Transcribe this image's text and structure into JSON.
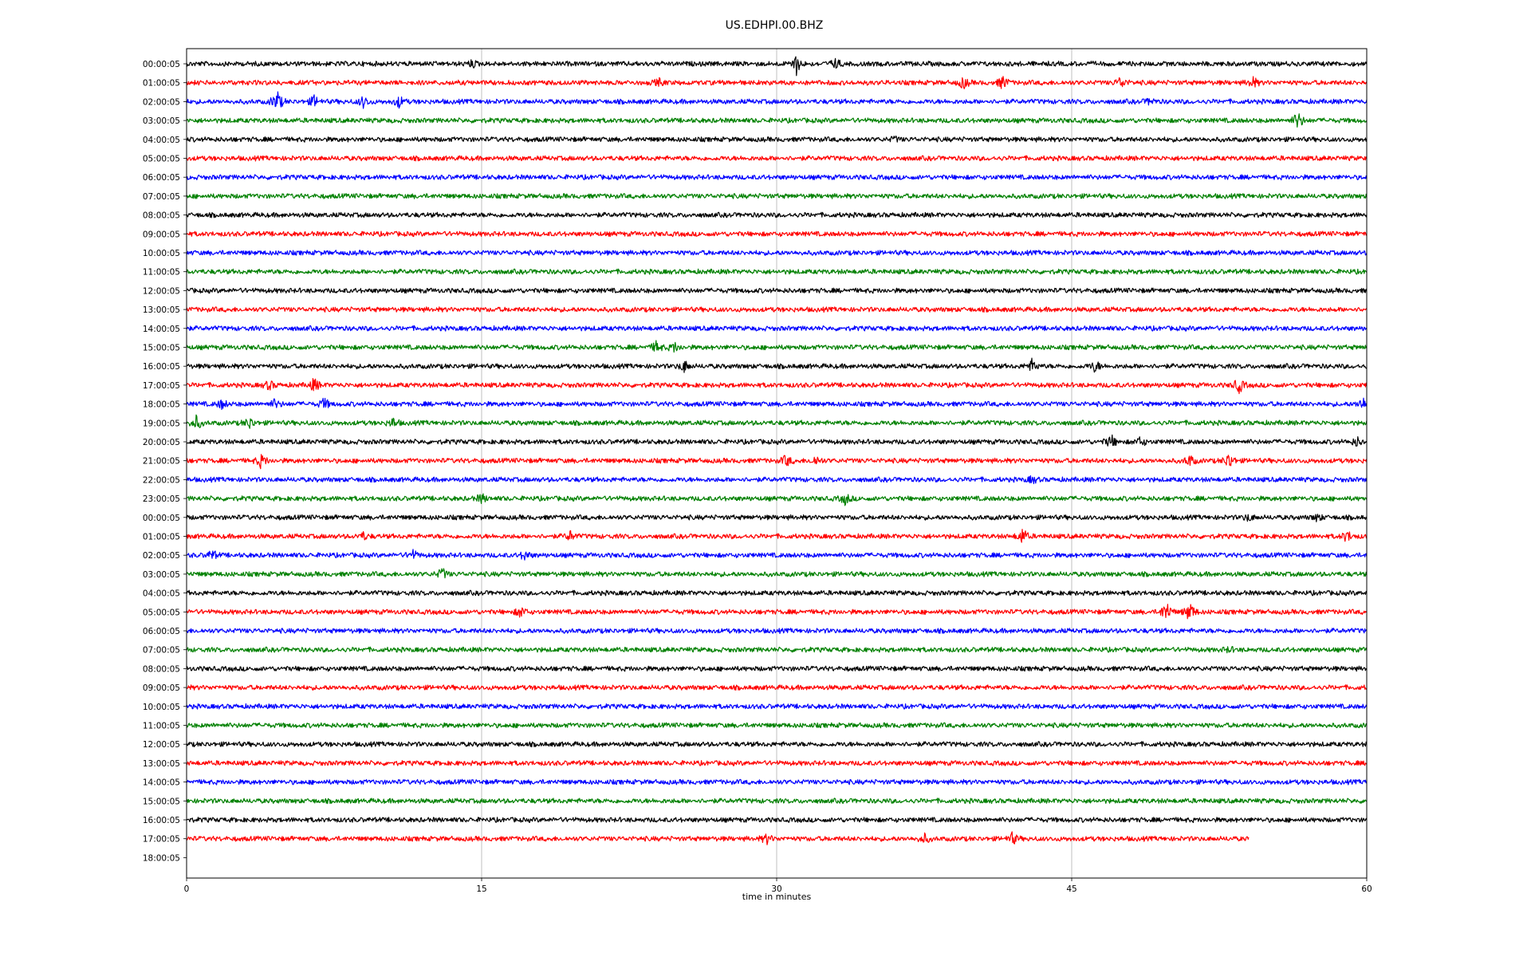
{
  "chart_data": {
    "type": "line",
    "title": "US.EDHPI.00.BHZ",
    "xlabel": "time in minutes",
    "ylabel": "",
    "xlim": [
      0,
      60
    ],
    "x_ticks": [
      0,
      15,
      30,
      45,
      60
    ],
    "grid": "vertical at x ticks",
    "trace_colors": [
      "#000000",
      "#ff0000",
      "#0000ff",
      "#008000"
    ],
    "row_labels": [
      "00:00:05",
      "01:00:05",
      "02:00:05",
      "03:00:05",
      "04:00:05",
      "05:00:05",
      "06:00:05",
      "07:00:05",
      "08:00:05",
      "09:00:05",
      "10:00:05",
      "11:00:05",
      "12:00:05",
      "13:00:05",
      "14:00:05",
      "15:00:05",
      "16:00:05",
      "17:00:05",
      "18:00:05",
      "19:00:05",
      "20:00:05",
      "21:00:05",
      "22:00:05",
      "23:00:05",
      "00:00:05",
      "01:00:05",
      "02:00:05",
      "03:00:05",
      "04:00:05",
      "05:00:05",
      "06:00:05",
      "07:00:05",
      "08:00:05",
      "09:00:05",
      "10:00:05",
      "11:00:05",
      "12:00:05",
      "13:00:05",
      "14:00:05",
      "15:00:05",
      "16:00:05",
      "17:00:05",
      "18:00:05"
    ],
    "trace_end_minutes": [
      60,
      60,
      60,
      60,
      60,
      60,
      60,
      60,
      60,
      60,
      60,
      60,
      60,
      60,
      60,
      60,
      60,
      60,
      60,
      60,
      60,
      60,
      60,
      60,
      60,
      60,
      60,
      60,
      60,
      60,
      60,
      60,
      60,
      60,
      60,
      60,
      60,
      60,
      60,
      60,
      60,
      54,
      0
    ],
    "events": [
      {
        "row": 0,
        "minute": 14.5,
        "amp": 0.3
      },
      {
        "row": 0,
        "minute": 31.0,
        "amp": 0.9
      },
      {
        "row": 0,
        "minute": 33.0,
        "amp": 0.4
      },
      {
        "row": 1,
        "minute": 24.0,
        "amp": 0.3
      },
      {
        "row": 1,
        "minute": 39.5,
        "amp": 0.5
      },
      {
        "row": 1,
        "minute": 41.5,
        "amp": 0.6
      },
      {
        "row": 1,
        "minute": 47.5,
        "amp": 0.5
      },
      {
        "row": 1,
        "minute": 54.2,
        "amp": 0.5
      },
      {
        "row": 2,
        "minute": 4.6,
        "amp": 1.0
      },
      {
        "row": 2,
        "minute": 6.5,
        "amp": 0.5
      },
      {
        "row": 2,
        "minute": 9.0,
        "amp": 0.5
      },
      {
        "row": 2,
        "minute": 10.8,
        "amp": 0.5
      },
      {
        "row": 2,
        "minute": 49.0,
        "amp": 0.3
      },
      {
        "row": 3,
        "minute": 56.5,
        "amp": 0.8
      },
      {
        "row": 4,
        "minute": 36.0,
        "amp": 0.2
      },
      {
        "row": 15,
        "minute": 23.9,
        "amp": 0.5
      },
      {
        "row": 15,
        "minute": 24.8,
        "amp": 0.4
      },
      {
        "row": 16,
        "minute": 25.3,
        "amp": 0.5
      },
      {
        "row": 16,
        "minute": 43.0,
        "amp": 0.6
      },
      {
        "row": 16,
        "minute": 46.2,
        "amp": 0.5
      },
      {
        "row": 17,
        "minute": 4.2,
        "amp": 0.4
      },
      {
        "row": 17,
        "minute": 6.5,
        "amp": 0.6
      },
      {
        "row": 17,
        "minute": 53.5,
        "amp": 0.7
      },
      {
        "row": 18,
        "minute": 1.8,
        "amp": 0.4
      },
      {
        "row": 18,
        "minute": 4.5,
        "amp": 0.4
      },
      {
        "row": 18,
        "minute": 7.0,
        "amp": 0.5
      },
      {
        "row": 18,
        "minute": 59.8,
        "amp": 0.6
      },
      {
        "row": 19,
        "minute": 0.5,
        "amp": 0.6
      },
      {
        "row": 19,
        "minute": 3.2,
        "amp": 0.5
      },
      {
        "row": 19,
        "minute": 10.5,
        "amp": 0.4
      },
      {
        "row": 20,
        "minute": 47.0,
        "amp": 0.6
      },
      {
        "row": 20,
        "minute": 48.5,
        "amp": 0.4
      },
      {
        "row": 20,
        "minute": 59.5,
        "amp": 0.4
      },
      {
        "row": 21,
        "minute": 3.8,
        "amp": 0.6
      },
      {
        "row": 21,
        "minute": 30.5,
        "amp": 0.5
      },
      {
        "row": 21,
        "minute": 32.0,
        "amp": 0.4
      },
      {
        "row": 21,
        "minute": 51.0,
        "amp": 0.5
      },
      {
        "row": 21,
        "minute": 53.0,
        "amp": 0.7
      },
      {
        "row": 22,
        "minute": 43.0,
        "amp": 0.3
      },
      {
        "row": 23,
        "minute": 15.0,
        "amp": 0.4
      },
      {
        "row": 23,
        "minute": 33.5,
        "amp": 0.5
      },
      {
        "row": 24,
        "minute": 54.0,
        "amp": 0.3
      },
      {
        "row": 24,
        "minute": 57.5,
        "amp": 0.3
      },
      {
        "row": 25,
        "minute": 9.0,
        "amp": 0.3
      },
      {
        "row": 25,
        "minute": 19.5,
        "amp": 0.4
      },
      {
        "row": 25,
        "minute": 42.5,
        "amp": 0.7
      },
      {
        "row": 25,
        "minute": 59.0,
        "amp": 0.5
      },
      {
        "row": 26,
        "minute": 1.3,
        "amp": 0.4
      },
      {
        "row": 26,
        "minute": 11.5,
        "amp": 0.4
      },
      {
        "row": 26,
        "minute": 17.2,
        "amp": 0.4
      },
      {
        "row": 27,
        "minute": 13.0,
        "amp": 0.5
      },
      {
        "row": 29,
        "minute": 17.0,
        "amp": 0.5
      },
      {
        "row": 29,
        "minute": 49.8,
        "amp": 1.0
      },
      {
        "row": 29,
        "minute": 51.0,
        "amp": 0.9
      },
      {
        "row": 31,
        "minute": 53.0,
        "amp": 0.2
      },
      {
        "row": 41,
        "minute": 29.5,
        "amp": 0.4
      },
      {
        "row": 41,
        "minute": 37.5,
        "amp": 0.4
      },
      {
        "row": 41,
        "minute": 42.0,
        "amp": 0.5
      }
    ]
  }
}
